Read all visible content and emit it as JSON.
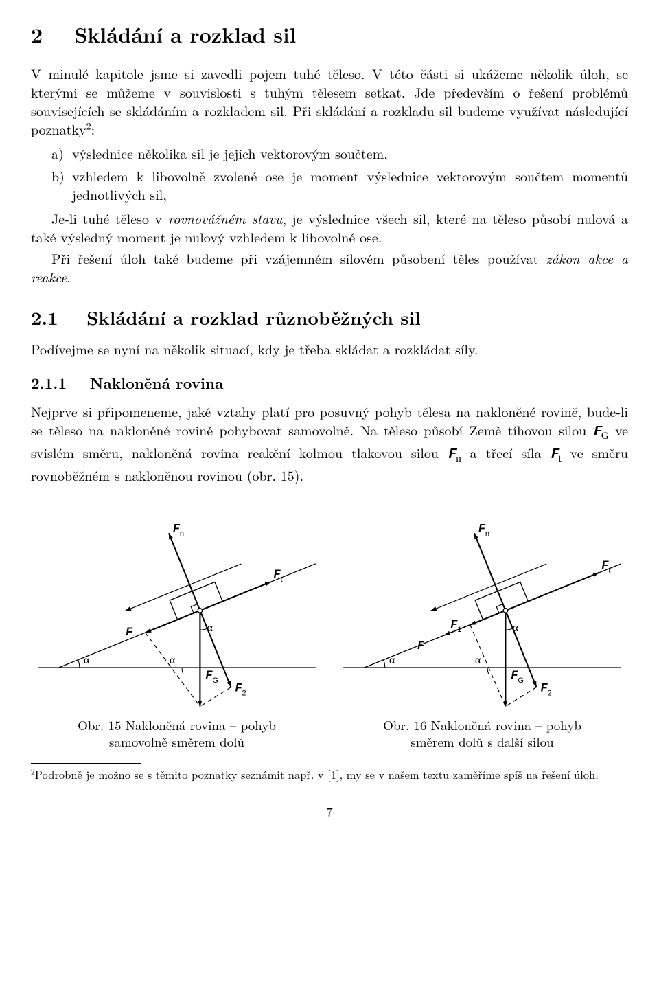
{
  "section": {
    "number": "2",
    "title": "Skládání a rozklad sil"
  },
  "intro_p1": "V minulé kapitole jsme si zavedli pojem tuhé těleso. V této části si ukážeme několik úloh, se kterými se můžeme v souvislosti s tuhým tělesem setkat. Jde především o řešení problémů souvisejících se skládáním a rozkladem sil. Při skládání a rozkladu sil budeme využívat následující poznatky",
  "footmark": "2",
  "intro_p1_tail": ":",
  "list": {
    "a_label": "a)",
    "a_text": "výslednice několika sil je jejich vektorovým součtem,",
    "b_label": "b)",
    "b_text": "vzhledem k libovolně zvolené ose je moment výslednice vektorovým součtem momentů jednotlivých sil,"
  },
  "para_eq": {
    "lead": "Je-li tuhé těleso v ",
    "ital": "rovnovážném stavu",
    "tail": ", je výslednice všech sil, které na těleso působí nulová a také výsledný moment je nulový vzhledem k libovolné ose."
  },
  "para_react": {
    "lead": "Při řešení úloh také budeme při vzájemném silovém působení těles používat ",
    "ital": "zákon akce a reakce",
    "tail": "."
  },
  "sub1": {
    "number": "2.1",
    "title": "Skládání a rozklad různoběžných sil"
  },
  "sub1_text": "Podívejme se nyní na několik situací, kdy je třeba skládat a rozkládat síly.",
  "sub11": {
    "number": "2.1.1",
    "title": "Nakloněná rovina"
  },
  "sub11_text_a": "Nejprve si připomeneme, jaké vztahy platí pro posuvný pohyb tělesa na nakloněné rovině, bude-li se těleso na nakloněné rovině pohybovat samovolně. Na těleso působí Země tíhovou silou ",
  "sub11_text_b": " ve svislém směru, nakloněná rovina reakční kolmou tlakovou silou ",
  "sub11_text_c": " a třecí síla ",
  "sub11_text_d": " ve směru rovnoběžném s nakloněnou rovinou (obr. 15).",
  "forces": {
    "FG": "F",
    "FG_sub": "G",
    "Fn": "F",
    "Fn_sub": "n",
    "Ft": "F",
    "Ft_sub": "t",
    "F1": "F",
    "F1_sub": "1",
    "F2": "F",
    "F2_sub": "2",
    "F": "F"
  },
  "fig15": {
    "caption_l1": "Obr. 15 Nakloněná rovina – pohyb",
    "caption_l2": "samovolně směrem dolů",
    "alpha": "α",
    "colors": {
      "line": "#000000",
      "dash": "#000000",
      "bg": "#ffffff"
    },
    "incline_deg": 22,
    "arrow_len": {
      "Fn": 120,
      "Ft": 110,
      "F1": 85,
      "F2": 85,
      "FG": 138
    },
    "line_width": 1.3
  },
  "fig16": {
    "caption_l1": "Obr. 16 Nakloněná rovina – pohyb",
    "caption_l2": "směrem dolů s další silou",
    "alpha": "α",
    "colors": {
      "line": "#000000",
      "dash": "#000000",
      "bg": "#ffffff"
    },
    "incline_deg": 22,
    "arrow_len": {
      "Fn": 120,
      "Ft": 145,
      "F1": 55,
      "F2": 85,
      "FG": 138,
      "F": 100
    },
    "line_width": 1.3
  },
  "footnote": {
    "mark": "2",
    "text": "Podrobně je možno se s těmito poznatky seznámit např. v [1], my se v našem textu zaměříme spíš na řešení úloh."
  },
  "pagenum": "7"
}
